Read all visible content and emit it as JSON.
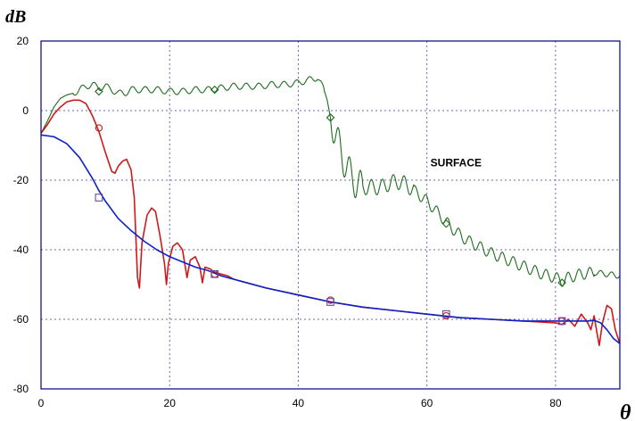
{
  "chart_data": {
    "type": "line",
    "ylabel": "dB",
    "xlabel": "θ",
    "xlim": [
      0,
      90
    ],
    "ylim": [
      -80,
      20
    ],
    "xticks": [
      0,
      20,
      40,
      60,
      80
    ],
    "yticks": [
      20,
      0,
      -20,
      -40,
      -60,
      -80
    ],
    "grid": true,
    "annotation": "SURFACE",
    "annotation_at": [
      60,
      -16
    ],
    "colors": {
      "frame": "#00008b",
      "grid": "#6a6aa8",
      "green": "#1e6b1e",
      "red": "#cc1a1a",
      "blue": "#0a22c8",
      "markers": "#6a4aa0"
    },
    "series": [
      {
        "key": "green",
        "marker": "diamond",
        "points": [
          [
            0,
            -6.5
          ],
          [
            1,
            -3
          ],
          [
            2,
            1
          ],
          [
            3,
            3.5
          ],
          [
            4,
            4.5
          ],
          [
            5,
            5
          ],
          [
            6,
            6
          ],
          [
            7,
            7
          ],
          [
            8,
            7.5
          ],
          [
            9,
            6.5
          ],
          [
            10,
            7
          ],
          [
            11,
            6
          ],
          [
            12,
            5
          ],
          [
            13,
            5
          ],
          [
            14,
            6
          ],
          [
            16,
            6
          ],
          [
            18,
            6
          ],
          [
            20,
            5.5
          ],
          [
            22,
            5.5
          ],
          [
            24,
            6
          ],
          [
            26,
            6
          ],
          [
            28,
            6.5
          ],
          [
            30,
            7
          ],
          [
            32,
            7
          ],
          [
            34,
            7
          ],
          [
            36,
            7.5
          ],
          [
            38,
            7.5
          ],
          [
            40,
            8
          ],
          [
            42,
            9
          ],
          [
            43,
            9.5
          ],
          [
            44,
            6
          ],
          [
            44.5,
            3
          ],
          [
            45,
            -2
          ],
          [
            46,
            -8
          ],
          [
            47,
            -14
          ],
          [
            48,
            -18
          ],
          [
            49,
            -21
          ],
          [
            50,
            -22
          ],
          [
            51,
            -22
          ],
          [
            52,
            -22
          ],
          [
            53,
            -22
          ],
          [
            54,
            -21
          ],
          [
            55,
            -20.5
          ],
          [
            56,
            -20.5
          ],
          [
            57,
            -21.5
          ],
          [
            58,
            -23
          ],
          [
            60,
            -26
          ],
          [
            62,
            -30
          ],
          [
            64,
            -34
          ],
          [
            66,
            -37
          ],
          [
            68,
            -39
          ],
          [
            70,
            -41
          ],
          [
            72,
            -42.5
          ],
          [
            74,
            -44
          ],
          [
            76,
            -45.5
          ],
          [
            78,
            -47
          ],
          [
            80,
            -48
          ],
          [
            81,
            -49
          ],
          [
            82,
            -48
          ],
          [
            84,
            -47
          ],
          [
            86,
            -46.5
          ],
          [
            88,
            -47
          ],
          [
            90,
            -47.5
          ]
        ],
        "marker_points": [
          [
            9,
            5.5
          ],
          [
            27,
            6
          ],
          [
            45,
            -2
          ],
          [
            63,
            -32.5
          ],
          [
            81,
            -49.5
          ]
        ]
      },
      {
        "key": "red",
        "marker": "circle",
        "points": [
          [
            0,
            -6.5
          ],
          [
            1,
            -4
          ],
          [
            2,
            -1
          ],
          [
            3,
            1
          ],
          [
            4,
            2.5
          ],
          [
            5,
            3
          ],
          [
            6,
            3
          ],
          [
            7,
            2
          ],
          [
            8,
            -1.5
          ],
          [
            9,
            -6
          ],
          [
            10,
            -12
          ],
          [
            11,
            -17.5
          ],
          [
            11.5,
            -18
          ],
          [
            12,
            -16
          ],
          [
            12.7,
            -14.5
          ],
          [
            13.3,
            -14
          ],
          [
            14,
            -17
          ],
          [
            14.5,
            -25
          ],
          [
            15,
            -48
          ],
          [
            15.3,
            -51
          ],
          [
            15.7,
            -38
          ],
          [
            16.5,
            -30
          ],
          [
            17.2,
            -28
          ],
          [
            17.8,
            -29
          ],
          [
            18.5,
            -36
          ],
          [
            19.2,
            -44
          ],
          [
            19.5,
            -50
          ],
          [
            19.8,
            -44
          ],
          [
            20.5,
            -39
          ],
          [
            21.2,
            -38
          ],
          [
            22,
            -40
          ],
          [
            22.7,
            -48
          ],
          [
            23.2,
            -43
          ],
          [
            24,
            -42
          ],
          [
            24.7,
            -45
          ],
          [
            25.1,
            -49.5
          ],
          [
            25.5,
            -45
          ],
          [
            26.3,
            -45.5
          ],
          [
            27,
            -46.5
          ],
          [
            28,
            -47
          ],
          [
            29,
            -47.5
          ],
          [
            30,
            -48.5
          ],
          [
            32,
            -49.5
          ],
          [
            35,
            -51
          ],
          [
            40,
            -53
          ],
          [
            45,
            -55
          ],
          [
            50,
            -56.5
          ],
          [
            55,
            -57.5
          ],
          [
            60,
            -58.5
          ],
          [
            65,
            -59.5
          ],
          [
            70,
            -60
          ],
          [
            75,
            -60.5
          ],
          [
            80,
            -61
          ],
          [
            81,
            -61.5
          ],
          [
            82,
            -60
          ],
          [
            83,
            -62
          ],
          [
            84,
            -58.5
          ],
          [
            85,
            -61
          ],
          [
            85.5,
            -63
          ],
          [
            86,
            -59
          ],
          [
            86.5,
            -64.5
          ],
          [
            86.8,
            -67.5
          ],
          [
            87.3,
            -61
          ],
          [
            88,
            -56
          ],
          [
            88.7,
            -57
          ],
          [
            89.3,
            -63
          ],
          [
            90,
            -67
          ]
        ],
        "marker_points": [
          [
            9,
            -5
          ],
          [
            27,
            -47
          ],
          [
            45,
            -54.5
          ],
          [
            63,
            -59
          ],
          [
            81,
            -60.5
          ]
        ]
      },
      {
        "key": "blue",
        "marker": "square",
        "points": [
          [
            0,
            -7
          ],
          [
            2,
            -7.5
          ],
          [
            4,
            -9.5
          ],
          [
            6,
            -13.5
          ],
          [
            8,
            -19.5
          ],
          [
            9,
            -23
          ],
          [
            10,
            -26
          ],
          [
            12,
            -31
          ],
          [
            14,
            -34.5
          ],
          [
            16,
            -37.5
          ],
          [
            18,
            -40
          ],
          [
            20,
            -42
          ],
          [
            22,
            -43.5
          ],
          [
            24,
            -45
          ],
          [
            26,
            -46
          ],
          [
            28,
            -47.5
          ],
          [
            30,
            -48.5
          ],
          [
            35,
            -51
          ],
          [
            40,
            -53
          ],
          [
            45,
            -55
          ],
          [
            50,
            -56.5
          ],
          [
            55,
            -57.5
          ],
          [
            60,
            -58.5
          ],
          [
            65,
            -59.5
          ],
          [
            70,
            -60
          ],
          [
            75,
            -60.5
          ],
          [
            80,
            -60.5
          ],
          [
            83,
            -60.5
          ],
          [
            85,
            -60.5
          ],
          [
            86,
            -60.3
          ],
          [
            87,
            -61
          ],
          [
            88,
            -63
          ],
          [
            89,
            -65.5
          ],
          [
            90,
            -67
          ]
        ],
        "marker_points": [
          [
            9,
            -25
          ],
          [
            27,
            -47
          ],
          [
            45,
            -55
          ],
          [
            63,
            -58.5
          ],
          [
            81,
            -60.5
          ]
        ]
      }
    ]
  }
}
